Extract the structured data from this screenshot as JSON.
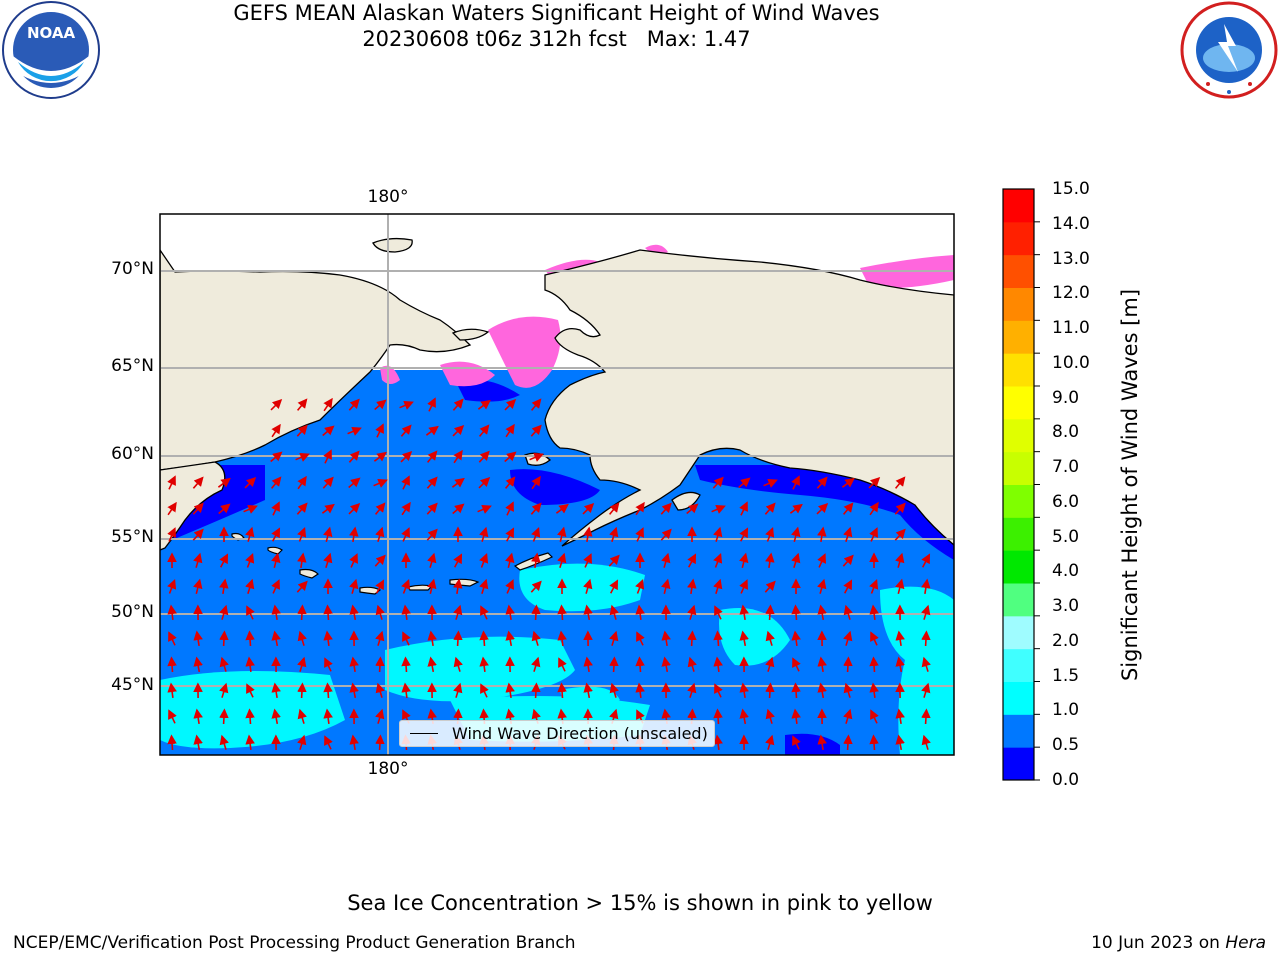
{
  "title": {
    "line1": "GEFS MEAN Alaskan Waters Significant Height of Wind Waves",
    "line2": "20230608 t06z 312h fcst   Max: 1.47"
  },
  "logos": {
    "left": {
      "name": "noaa-logo",
      "text": "NOAA"
    },
    "right": {
      "name": "nws-logo",
      "text": "NATIONAL WEATHER SERVICE"
    }
  },
  "map": {
    "lat_labels": [
      "70°N",
      "65°N",
      "60°N",
      "55°N",
      "50°N",
      "45°N"
    ],
    "lon_label_top": "180°",
    "lon_label_bottom": "180°",
    "legend_text": "Wind Wave Direction (unscaled)",
    "colors": {
      "land": "#efebdc",
      "ocean_low": "#0000ff",
      "ocean_mid": "#0078ff",
      "ocean_high": "#00ffff",
      "ice": "#ff66dd",
      "arrow": "#e00000",
      "grid": "#b0b0b0"
    }
  },
  "colorbar": {
    "label": "Significant Height of Wind Waves [m]",
    "ticks": [
      "15.0",
      "14.0",
      "13.0",
      "12.0",
      "11.0",
      "10.0",
      "9.0",
      "8.0",
      "7.0",
      "6.0",
      "5.0",
      "4.0",
      "3.0",
      "2.0",
      "1.5",
      "1.0",
      "0.5",
      "0.0"
    ],
    "colors": [
      "#0000ff",
      "#0078ff",
      "#00ffff",
      "#40ffff",
      "#9ffcff",
      "#50ff80",
      "#00e800",
      "#3cf000",
      "#7fff00",
      "#c8ff00",
      "#e0ff00",
      "#ffff00",
      "#ffe000",
      "#ffb000",
      "#ff8800",
      "#ff5000",
      "#ff2000",
      "#ff0000"
    ]
  },
  "footnote": "Sea Ice Concentration > 15% is shown in pink to yellow",
  "credit_left": "NCEP/EMC/Verification Post Processing Product Generation Branch",
  "credit_right_date": "10 Jun 2023 on ",
  "credit_right_host": "Hera"
}
